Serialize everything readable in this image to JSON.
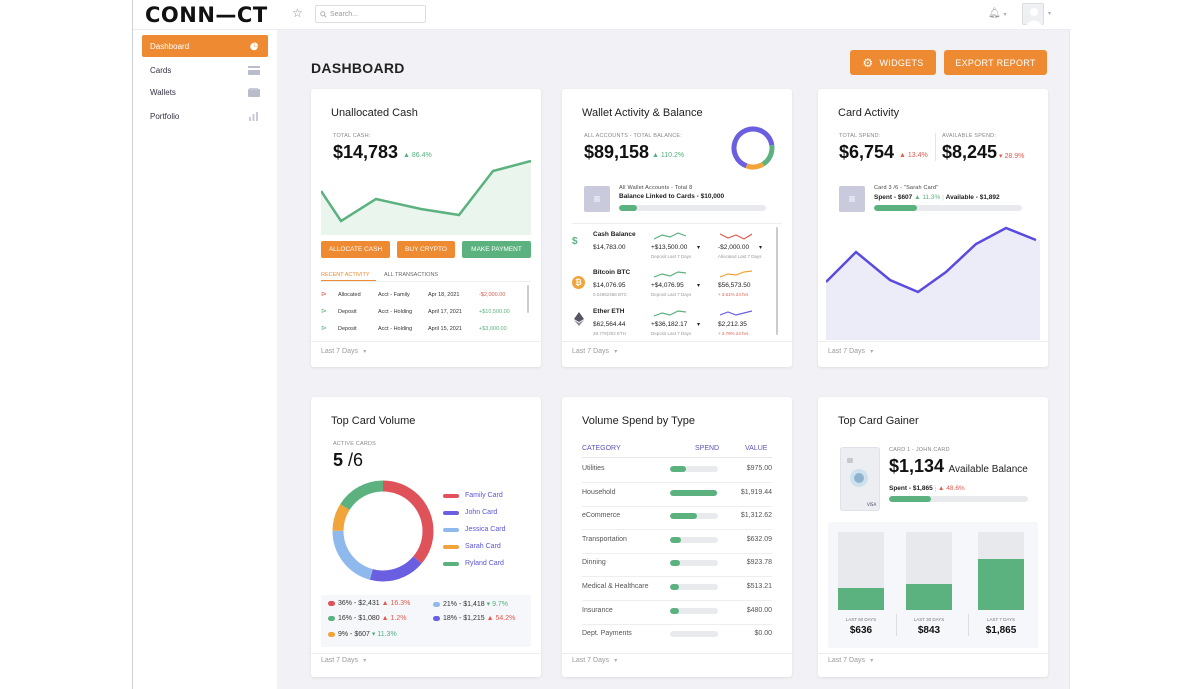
{
  "app": {
    "logo": "CONN—CT",
    "search_placeholder": "Search..."
  },
  "sidebar": {
    "items": [
      {
        "label": "Dashboard",
        "icon": "pie-chart-icon"
      },
      {
        "label": "Cards",
        "icon": "card-icon"
      },
      {
        "label": "Wallets",
        "icon": "wallet-icon"
      },
      {
        "label": "Portfolio",
        "icon": "bar-chart-icon"
      }
    ]
  },
  "header": {
    "title": "DASHBOARD",
    "widgets_label": "WIDGETS",
    "export_label": "EXPORT REPORT"
  },
  "colors": {
    "accent": "#ee8a32",
    "green": "#5cb27f",
    "red": "#e05a4e",
    "purple": "#5a56d8"
  },
  "unallocated": {
    "title": "Unallocated Cash",
    "total_label": "TOTAL CASH:",
    "total": "$14,783",
    "change": "86.4%",
    "buttons": [
      "ALLOCATE CASH",
      "BUY CRYPTO",
      "MAKE PAYMENT"
    ],
    "tabs": [
      "RECENT ACTIVITY",
      "ALL TRANSACTIONS"
    ],
    "rows": [
      {
        "type": "Allocated",
        "account": "Acct - Family",
        "date": "Apr 18, 2021",
        "amount": "-$2,000.00"
      },
      {
        "type": "Deposit",
        "account": "Acct - Holding",
        "date": "April 17, 2021",
        "amount": "+$10,500.00"
      },
      {
        "type": "Deposit",
        "account": "Acct - Holding",
        "date": "April 15, 2021",
        "amount": "+$3,000.00"
      }
    ],
    "footer": "Last 7 Days"
  },
  "wallet": {
    "title": "Wallet Activity & Balance",
    "total_label": "ALL ACCOUNTS - TOTAL BALANCE:",
    "total": "$89,158",
    "change": "110.2%",
    "linked_label": "All Wallet Accounts - Total 8",
    "linked_text": "Balance Linked to Cards - $10,000",
    "linked_progress": 0.12,
    "assets": [
      {
        "name": "Cash Balance",
        "value": "$14,783.00",
        "sub": "",
        "dep": "+$13,500.00",
        "dep_lbl": "Deposit Last 7 Days",
        "alloc": "-$2,000.00",
        "alloc_lbl": "Allocated Last 7 Days"
      },
      {
        "name": "Bitcoin BTC",
        "value": "$14,076.95",
        "sub": "0.24882488 BTC",
        "dep": "+$4,076.95",
        "dep_lbl": "Deposit Last 7 Days",
        "alloc": "$56,573.50",
        "alloc_lbl": "+ 3.61% 24 hrs"
      },
      {
        "name": "Ether ETH",
        "value": "$62,564.44",
        "sub": "28.779(302 ETH",
        "dep": "+$36,182.17",
        "dep_lbl": "Deposit Last 7 Days",
        "alloc": "$2,212.35",
        "alloc_lbl": "+ 3.79% 24 hrs"
      }
    ],
    "footer": "Last 7 Days"
  },
  "card_activity": {
    "title": "Card Activity",
    "spend_label": "TOTAL SPEND:",
    "spend": "$6,754",
    "spend_change": "13.4%",
    "avail_label": "AVAILABLE SPEND:",
    "avail": "$8,245",
    "avail_change": "28.9%",
    "card_label": "Card 3 /6 - \"Sarah Card\"",
    "card_spent": "Spent - $607",
    "card_pct": "11.3%",
    "card_avail": "Available - $1,892",
    "card_progress": 0.29,
    "footer": "Last 7 Days"
  },
  "top_volume": {
    "title": "Top Card Volume",
    "active_label": "ACTIVE CARDS",
    "active": "5",
    "total": "/6",
    "legend": [
      {
        "name": "Family Card",
        "color": "#e0525a"
      },
      {
        "name": "John Card",
        "color": "#6a5fe0"
      },
      {
        "name": "Jessica Card",
        "color": "#8fb9ec"
      },
      {
        "name": "Sarah Card",
        "color": "#f0a43a"
      },
      {
        "name": "Ryland Card",
        "color": "#5cb27f"
      }
    ],
    "stats": [
      {
        "text": "36% - $2,431",
        "change": "16.3%",
        "dir": "up",
        "color": "#e0525a"
      },
      {
        "text": "21% - $1,418",
        "change": "9.7%",
        "dir": "down",
        "color": "#8fb9ec"
      },
      {
        "text": "16% - $1,080",
        "change": "1.2%",
        "dir": "up",
        "color": "#5cb27f"
      },
      {
        "text": "18% - $1,215",
        "change": "54.2%",
        "dir": "up",
        "color": "#6a5fe0"
      },
      {
        "text": "9% - $607",
        "change": "11.3%",
        "dir": "down",
        "color": "#f0a43a"
      }
    ],
    "footer": "Last 7 Days"
  },
  "volume_spend": {
    "title": "Volume Spend by Type",
    "headers": [
      "CATEGORY",
      "SPEND",
      "VALUE"
    ],
    "rows": [
      {
        "category": "Utilities",
        "value": "$975.00",
        "fill": 0.33
      },
      {
        "category": "Household",
        "value": "$1,919.44",
        "fill": 0.98
      },
      {
        "category": "eCommerce",
        "value": "$1,312.62",
        "fill": 0.56
      },
      {
        "category": "Transportation",
        "value": "$632.09",
        "fill": 0.22
      },
      {
        "category": "Dinning",
        "value": "$923.78",
        "fill": 0.2
      },
      {
        "category": "Medical & Healthcare",
        "value": "$513.21",
        "fill": 0.18
      },
      {
        "category": "Insurance",
        "value": "$480.00",
        "fill": 0.18
      },
      {
        "category": "Dept. Payments",
        "value": "$0.00",
        "fill": 0
      }
    ],
    "footer": "Last 7 Days"
  },
  "top_gainer": {
    "title": "Top Card Gainer",
    "card_label": "CARD 1 - JOHN CARD",
    "amount": "$1,134",
    "amount_label": "Available Balance",
    "spent": "Spent - $1,865",
    "change": "48.6%",
    "progress": 0.3,
    "bars": [
      {
        "label": "LAST 60 DAYS",
        "value": "$636",
        "fill": 0.28
      },
      {
        "label": "LAST 30 DAYS",
        "value": "$843",
        "fill": 0.33
      },
      {
        "label": "LAST 7 DAYS",
        "value": "$1,865",
        "fill": 0.65
      }
    ],
    "footer": "Last 7 Days"
  }
}
